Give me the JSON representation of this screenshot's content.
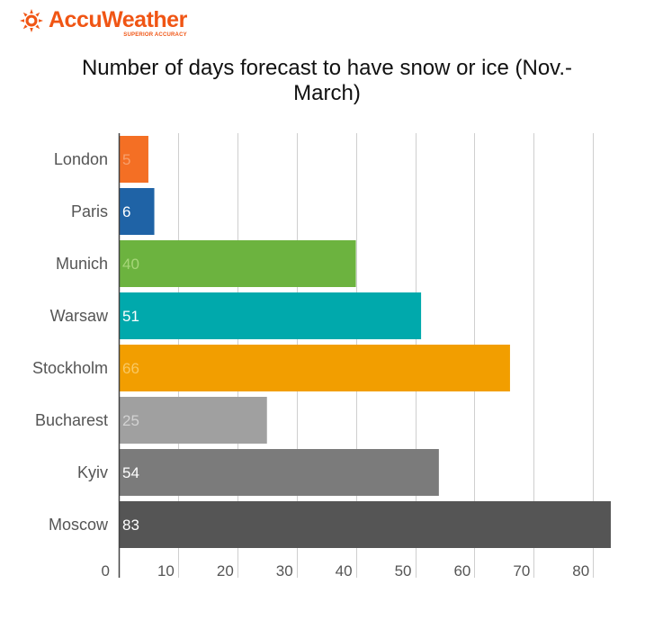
{
  "brand": {
    "name": "AccuWeather",
    "tagline": "SUPERIOR ACCURACY",
    "color": "#f05514"
  },
  "chart_data": {
    "type": "bar",
    "orientation": "horizontal",
    "title_lines": [
      "Number of days forecast to have snow or ice (Nov.-",
      "March)"
    ],
    "categories": [
      "London",
      "Paris",
      "Munich",
      "Warsaw",
      "Stockholm",
      "Bucharest",
      "Kyiv",
      "Moscow"
    ],
    "values": [
      5,
      6,
      40,
      51,
      66,
      25,
      54,
      83
    ],
    "colors": [
      "#f46f24",
      "#1f63a6",
      "#6cb33f",
      "#00a9ac",
      "#f29e00",
      "#a0a0a0",
      "#7b7b7b",
      "#555555"
    ],
    "label_colors": [
      "#f8a06c",
      "#ffffff",
      "#a6d678",
      "#ffffff",
      "#f9c862",
      "#d2d2d2",
      "#ffffff",
      "#ffffff"
    ],
    "xlim": [
      0,
      83
    ],
    "x_ticks": [
      0,
      10,
      20,
      30,
      40,
      50,
      60,
      70,
      80
    ],
    "xlabel": "",
    "ylabel": "",
    "grid": true,
    "legend": "none"
  }
}
